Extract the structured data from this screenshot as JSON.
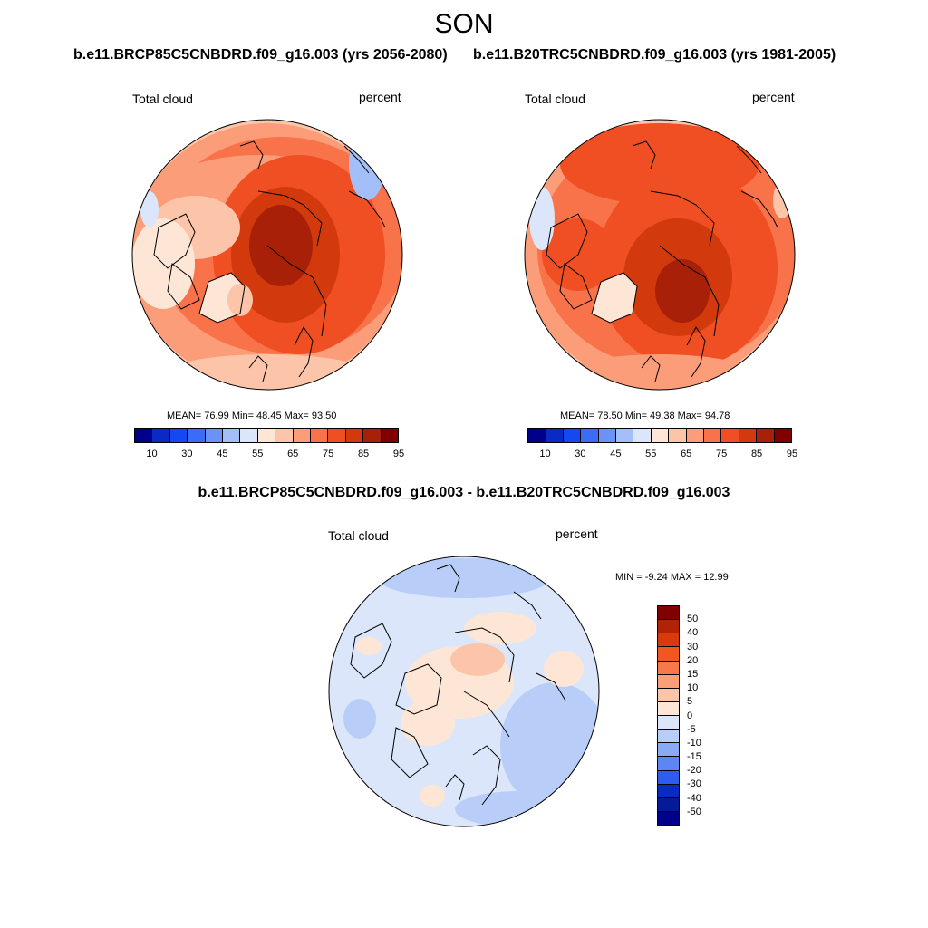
{
  "season": "SON",
  "case_titles": {
    "left": "b.e11.BRCP85C5CNBDRD.f09_g16.003 (yrs 2056-2080)",
    "right": "b.e11.B20TRC5CNBDRD.f09_g16.003 (yrs 1981-2005)"
  },
  "diff_title": "b.e11.BRCP85C5CNBDRD.f09_g16.003 - b.e11.B20TRC5CNBDRD.f09_g16.003",
  "panels": {
    "left": {
      "variable": "Total cloud",
      "units": "percent",
      "stats": "MEAN=  76.99  Min=  48.45  Max=  93.50",
      "mean": 76.99,
      "min": 48.45,
      "max": 93.5
    },
    "right": {
      "variable": "Total cloud",
      "units": "percent",
      "stats": "MEAN=  78.50  Min=  49.38  Max=  94.78",
      "mean": 78.5,
      "min": 49.38,
      "max": 94.78
    },
    "diff": {
      "variable": "Total cloud",
      "units": "percent",
      "minmax": "MIN =  -9.24 MAX =  12.99",
      "min": -9.24,
      "max": 12.99
    }
  },
  "colorbar_main": {
    "labels": [
      "10",
      "30",
      "45",
      "55",
      "65",
      "75",
      "85",
      "95"
    ],
    "colors": [
      "#00008b",
      "#0a2ac4",
      "#1448f0",
      "#3a6cf5",
      "#6b92f6",
      "#a4bff8",
      "#dbe6fb",
      "#fde6d6",
      "#fcc4a8",
      "#fb9d78",
      "#f8734a",
      "#ef4f22",
      "#d23a0e",
      "#a82008",
      "#800000"
    ]
  },
  "colorbar_diff": {
    "labels": [
      "50",
      "40",
      "30",
      "20",
      "15",
      "10",
      "5",
      "0",
      "-5",
      "-10",
      "-15",
      "-20",
      "-30",
      "-40",
      "-50"
    ],
    "colors": [
      "#800000",
      "#b22206",
      "#d93a0d",
      "#f2571f",
      "#f8784c",
      "#fb9e7a",
      "#fcc4a8",
      "#fde6d6",
      "#dbe6fb",
      "#b8cef9",
      "#8aaaf6",
      "#5d85f3",
      "#2d5cee",
      "#0a2ac4",
      "#051a98",
      "#00008b"
    ]
  }
}
